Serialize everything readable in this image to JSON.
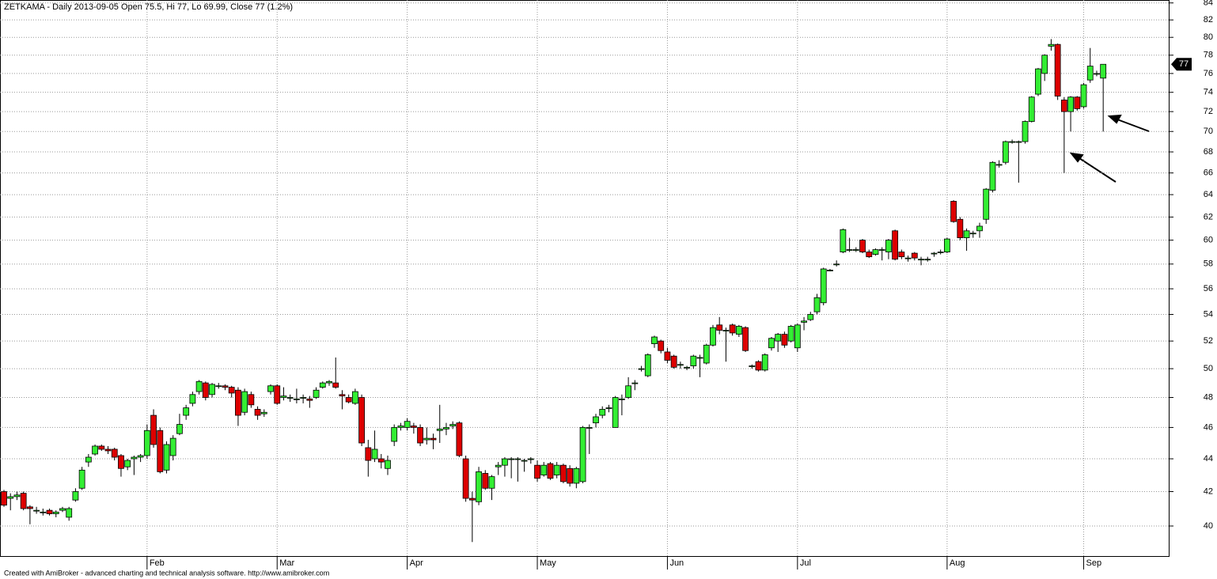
{
  "chart_data": {
    "type": "candlestick",
    "title": "ZETKAMA - Daily 2013-09-05 Open 75.5, Hi 77, Lo 69.99, Close 77 (1.2%)",
    "footer": "Created with AmiBroker - advanced charting and technical analysis software. http://www.amibroker.com",
    "log_scale": true,
    "grid": true,
    "up_color": "#33ee33",
    "down_color": "#dd0000",
    "ylim": [
      38.33,
      84.35
    ],
    "yticks": [
      40,
      42,
      44,
      46,
      48,
      50,
      52,
      54,
      56,
      58,
      60,
      62,
      64,
      66,
      68,
      70,
      72,
      74,
      76,
      78,
      80,
      82,
      84
    ],
    "categories": [
      null,
      null,
      null,
      null,
      null,
      null,
      null,
      null,
      null,
      null,
      null,
      null,
      null,
      null,
      null,
      null,
      null,
      null,
      null,
      null,
      null,
      null,
      "Feb",
      null,
      null,
      null,
      null,
      null,
      null,
      null,
      null,
      null,
      null,
      null,
      null,
      null,
      null,
      null,
      null,
      null,
      null,
      null,
      "Mar",
      null,
      null,
      null,
      null,
      null,
      null,
      null,
      null,
      null,
      null,
      null,
      null,
      null,
      null,
      null,
      null,
      null,
      null,
      null,
      "Apr",
      null,
      null,
      null,
      null,
      null,
      null,
      null,
      null,
      null,
      null,
      null,
      null,
      null,
      null,
      null,
      null,
      null,
      null,
      null,
      "May",
      null,
      null,
      null,
      null,
      null,
      null,
      null,
      null,
      null,
      null,
      null,
      null,
      null,
      null,
      null,
      null,
      null,
      null,
      null,
      "Jun",
      null,
      null,
      null,
      null,
      null,
      null,
      null,
      null,
      null,
      null,
      null,
      null,
      null,
      null,
      null,
      null,
      null,
      null,
      null,
      "Jul",
      null,
      null,
      null,
      null,
      null,
      null,
      null,
      null,
      null,
      null,
      null,
      null,
      null,
      null,
      null,
      null,
      null,
      null,
      null,
      null,
      null,
      null,
      "Aug",
      null,
      null,
      null,
      null,
      null,
      null,
      null,
      null,
      null,
      null,
      null,
      null,
      null,
      null,
      null,
      null,
      null,
      null,
      null,
      null,
      "Sep",
      null,
      null,
      null
    ],
    "ohlc": [
      [
        42.0,
        42.1,
        41.1,
        41.2
      ],
      [
        41.6,
        41.9,
        40.9,
        41.7
      ],
      [
        41.7,
        42.0,
        41.5,
        41.8
      ],
      [
        41.9,
        42.0,
        40.9,
        41.0
      ],
      [
        41.1,
        41.2,
        40.1,
        41.0
      ],
      [
        40.9,
        41.1,
        40.7,
        40.9
      ],
      [
        40.8,
        41.0,
        40.6,
        40.8
      ],
      [
        40.9,
        41.0,
        40.6,
        40.7
      ],
      [
        40.7,
        40.9,
        40.5,
        40.8
      ],
      [
        40.9,
        41.1,
        40.8,
        41.0
      ],
      [
        40.5,
        41.1,
        40.3,
        41.0
      ],
      [
        41.5,
        42.2,
        41.4,
        42.0
      ],
      [
        42.2,
        43.5,
        42.1,
        43.3
      ],
      [
        43.8,
        44.3,
        43.5,
        44.1
      ],
      [
        44.3,
        44.9,
        44.2,
        44.8
      ],
      [
        44.8,
        44.9,
        44.5,
        44.6
      ],
      [
        44.6,
        44.8,
        44.3,
        44.5
      ],
      [
        44.6,
        44.7,
        43.9,
        44.1
      ],
      [
        44.2,
        44.3,
        42.9,
        43.4
      ],
      [
        43.5,
        44.0,
        43.3,
        43.9
      ],
      [
        44.0,
        44.2,
        43.0,
        44.1
      ],
      [
        44.1,
        44.3,
        43.8,
        44.2
      ],
      [
        44.2,
        46.2,
        44.0,
        45.8
      ],
      [
        46.8,
        47.2,
        44.7,
        44.9
      ],
      [
        45.8,
        46.0,
        43.1,
        43.2
      ],
      [
        43.3,
        45.1,
        43.1,
        44.9
      ],
      [
        44.2,
        45.5,
        43.9,
        45.3
      ],
      [
        45.6,
        46.9,
        45.5,
        46.2
      ],
      [
        46.8,
        47.5,
        46.5,
        47.3
      ],
      [
        47.6,
        48.4,
        47.4,
        48.2
      ],
      [
        48.4,
        49.2,
        48.2,
        49.1
      ],
      [
        49.0,
        49.1,
        47.8,
        48.0
      ],
      [
        48.2,
        49.0,
        48.0,
        48.9
      ],
      [
        48.8,
        49.0,
        48.6,
        48.8
      ],
      [
        48.8,
        48.9,
        48.5,
        48.7
      ],
      [
        48.7,
        48.8,
        48.0,
        48.3
      ],
      [
        48.5,
        48.7,
        46.1,
        46.8
      ],
      [
        47.0,
        48.6,
        46.8,
        48.4
      ],
      [
        48.2,
        48.4,
        47.3,
        47.5
      ],
      [
        47.2,
        47.4,
        46.5,
        46.8
      ],
      [
        46.9,
        47.2,
        46.7,
        47.0
      ],
      [
        48.4,
        48.9,
        48.2,
        48.8
      ],
      [
        48.8,
        48.9,
        47.5,
        47.6
      ],
      [
        48.0,
        48.7,
        47.8,
        48.1
      ],
      [
        48.0,
        48.2,
        47.7,
        48.0
      ],
      [
        47.9,
        48.6,
        47.6,
        47.9
      ],
      [
        48.0,
        48.2,
        47.6,
        48.0
      ],
      [
        47.9,
        48.1,
        47.3,
        47.8
      ],
      [
        48.0,
        48.7,
        47.9,
        48.5
      ],
      [
        48.7,
        49.1,
        48.6,
        49.0
      ],
      [
        49.0,
        49.2,
        48.8,
        49.1
      ],
      [
        49.0,
        50.8,
        48.6,
        48.7
      ],
      [
        48.2,
        48.5,
        47.2,
        48.1
      ],
      [
        48.0,
        48.2,
        47.6,
        47.7
      ],
      [
        47.6,
        48.6,
        47.5,
        48.4
      ],
      [
        48.0,
        48.2,
        44.8,
        45.0
      ],
      [
        44.7,
        45.2,
        42.9,
        43.9
      ],
      [
        44.0,
        45.8,
        43.8,
        44.6
      ],
      [
        44.0,
        44.3,
        43.4,
        43.8
      ],
      [
        43.4,
        44.2,
        43.0,
        43.9
      ],
      [
        45.1,
        46.2,
        44.8,
        46.0
      ],
      [
        46.0,
        46.3,
        45.8,
        46.1
      ],
      [
        46.0,
        46.6,
        45.8,
        46.4
      ],
      [
        46.1,
        46.3,
        45.6,
        46.0
      ],
      [
        46.0,
        46.2,
        44.8,
        45.0
      ],
      [
        45.2,
        46.0,
        44.9,
        45.3
      ],
      [
        45.3,
        45.6,
        44.6,
        45.2
      ],
      [
        45.8,
        47.5,
        45.0,
        45.9
      ],
      [
        45.9,
        46.3,
        45.5,
        46.0
      ],
      [
        46.1,
        46.4,
        45.9,
        46.2
      ],
      [
        46.3,
        46.4,
        44.1,
        44.2
      ],
      [
        44.0,
        44.2,
        41.4,
        41.6
      ],
      [
        41.6,
        42.0,
        39.1,
        41.5
      ],
      [
        41.4,
        43.5,
        41.2,
        43.2
      ],
      [
        43.1,
        43.3,
        42.1,
        42.2
      ],
      [
        42.2,
        43.0,
        41.5,
        42.9
      ],
      [
        43.5,
        43.8,
        43.0,
        43.6
      ],
      [
        43.6,
        44.1,
        42.9,
        44.0
      ],
      [
        44.0,
        44.1,
        42.8,
        44.0
      ],
      [
        44.0,
        44.1,
        42.6,
        44.0
      ],
      [
        43.9,
        44.0,
        43.2,
        43.9
      ],
      [
        44.0,
        44.1,
        43.7,
        44.0
      ],
      [
        43.6,
        43.9,
        42.6,
        42.8
      ],
      [
        43.0,
        43.8,
        42.9,
        43.6
      ],
      [
        43.7,
        43.8,
        42.7,
        42.8
      ],
      [
        43.0,
        43.8,
        42.8,
        43.6
      ],
      [
        43.6,
        43.7,
        42.5,
        42.6
      ],
      [
        43.4,
        43.6,
        42.3,
        42.5
      ],
      [
        42.5,
        43.5,
        42.2,
        43.4
      ],
      [
        42.6,
        46.1,
        42.5,
        46.0
      ],
      [
        46.0,
        46.2,
        44.3,
        46.0
      ],
      [
        46.3,
        46.9,
        46.0,
        46.7
      ],
      [
        46.8,
        47.4,
        46.6,
        47.2
      ],
      [
        47.3,
        47.5,
        47.0,
        47.3
      ],
      [
        46.0,
        48.1,
        46.0,
        48.0
      ],
      [
        47.9,
        48.2,
        46.8,
        47.9
      ],
      [
        48.0,
        49.4,
        47.9,
        48.8
      ],
      [
        49.0,
        49.2,
        48.5,
        49.0
      ],
      [
        50.0,
        50.2,
        49.8,
        50.0
      ],
      [
        49.5,
        51.1,
        49.4,
        51.0
      ],
      [
        51.8,
        52.4,
        51.5,
        52.3
      ],
      [
        52.0,
        52.1,
        51.1,
        51.3
      ],
      [
        51.2,
        51.5,
        50.4,
        50.6
      ],
      [
        50.9,
        51.0,
        50.0,
        50.1
      ],
      [
        50.3,
        50.5,
        50.0,
        50.3
      ],
      [
        50.1,
        50.2,
        49.9,
        50.1
      ],
      [
        50.2,
        51.0,
        50.0,
        50.9
      ],
      [
        50.8,
        51.0,
        49.4,
        50.8
      ],
      [
        50.4,
        51.8,
        50.3,
        51.7
      ],
      [
        51.7,
        53.2,
        51.6,
        53.0
      ],
      [
        53.2,
        53.8,
        52.5,
        52.8
      ],
      [
        52.8,
        53.0,
        50.5,
        52.8
      ],
      [
        53.2,
        53.3,
        52.4,
        52.6
      ],
      [
        52.5,
        53.2,
        52.3,
        53.1
      ],
      [
        53.0,
        53.1,
        51.2,
        51.3
      ],
      [
        50.2,
        50.3,
        50.0,
        50.2
      ],
      [
        50.5,
        50.6,
        49.8,
        49.9
      ],
      [
        49.9,
        51.1,
        49.8,
        51.0
      ],
      [
        51.5,
        52.3,
        51.3,
        52.2
      ],
      [
        52.0,
        52.6,
        51.2,
        52.5
      ],
      [
        52.5,
        52.7,
        51.5,
        51.7
      ],
      [
        52.0,
        53.2,
        51.9,
        53.1
      ],
      [
        51.5,
        53.3,
        51.2,
        53.2
      ],
      [
        53.4,
        53.8,
        52.8,
        53.5
      ],
      [
        53.6,
        54.2,
        53.5,
        54.0
      ],
      [
        54.2,
        55.6,
        54.0,
        55.3
      ],
      [
        54.9,
        57.7,
        54.7,
        57.6
      ],
      [
        57.5,
        57.6,
        57.4,
        57.5
      ],
      [
        58.0,
        58.3,
        57.8,
        58.0
      ],
      [
        59.0,
        61.0,
        58.9,
        60.9
      ],
      [
        59.2,
        60.2,
        59.0,
        59.2
      ],
      [
        59.2,
        59.4,
        59.0,
        59.2
      ],
      [
        60.0,
        60.1,
        58.9,
        59.0
      ],
      [
        59.0,
        59.2,
        58.5,
        58.6
      ],
      [
        58.8,
        59.3,
        58.7,
        59.2
      ],
      [
        59.2,
        59.4,
        58.3,
        59.2
      ],
      [
        59.0,
        60.1,
        58.4,
        60.0
      ],
      [
        60.8,
        60.9,
        58.3,
        58.4
      ],
      [
        59.0,
        59.2,
        58.4,
        58.6
      ],
      [
        58.5,
        58.7,
        58.2,
        58.5
      ],
      [
        58.9,
        59.0,
        58.3,
        58.5
      ],
      [
        58.4,
        58.6,
        57.9,
        58.4
      ],
      [
        58.4,
        58.6,
        58.2,
        58.4
      ],
      [
        58.9,
        59.0,
        58.6,
        58.9
      ],
      [
        59.0,
        59.2,
        58.8,
        59.0
      ],
      [
        59.0,
        60.2,
        58.9,
        60.1
      ],
      [
        63.4,
        63.5,
        61.5,
        61.6
      ],
      [
        61.8,
        62.0,
        60.0,
        60.2
      ],
      [
        60.2,
        61.0,
        59.1,
        60.8
      ],
      [
        60.6,
        60.8,
        60.2,
        60.6
      ],
      [
        60.8,
        61.5,
        60.2,
        61.2
      ],
      [
        61.8,
        64.6,
        61.4,
        64.5
      ],
      [
        64.4,
        67.1,
        64.2,
        67.0
      ],
      [
        66.8,
        67.2,
        66.5,
        66.8
      ],
      [
        67.0,
        69.1,
        66.8,
        69.0
      ],
      [
        69.0,
        69.2,
        68.8,
        69.0
      ],
      [
        69.0,
        69.1,
        65.1,
        69.0
      ],
      [
        69.0,
        71.1,
        68.8,
        71.0
      ],
      [
        71.0,
        73.6,
        70.9,
        73.5
      ],
      [
        73.8,
        76.6,
        73.6,
        76.5
      ],
      [
        76.0,
        78.1,
        75.2,
        78.0
      ],
      [
        79.0,
        79.8,
        78.5,
        79.2
      ],
      [
        79.2,
        79.3,
        73.2,
        73.6
      ],
      [
        73.2,
        73.5,
        66.0,
        72.0
      ],
      [
        72.0,
        73.6,
        70.0,
        73.5
      ],
      [
        73.5,
        73.6,
        72.1,
        72.3
      ],
      [
        72.5,
        75.0,
        72.3,
        74.8
      ],
      [
        75.3,
        78.8,
        75.0,
        76.8
      ],
      [
        76.0,
        76.3,
        75.7,
        76.0
      ],
      [
        75.5,
        77.0,
        69.99,
        77.0
      ]
    ]
  }
}
